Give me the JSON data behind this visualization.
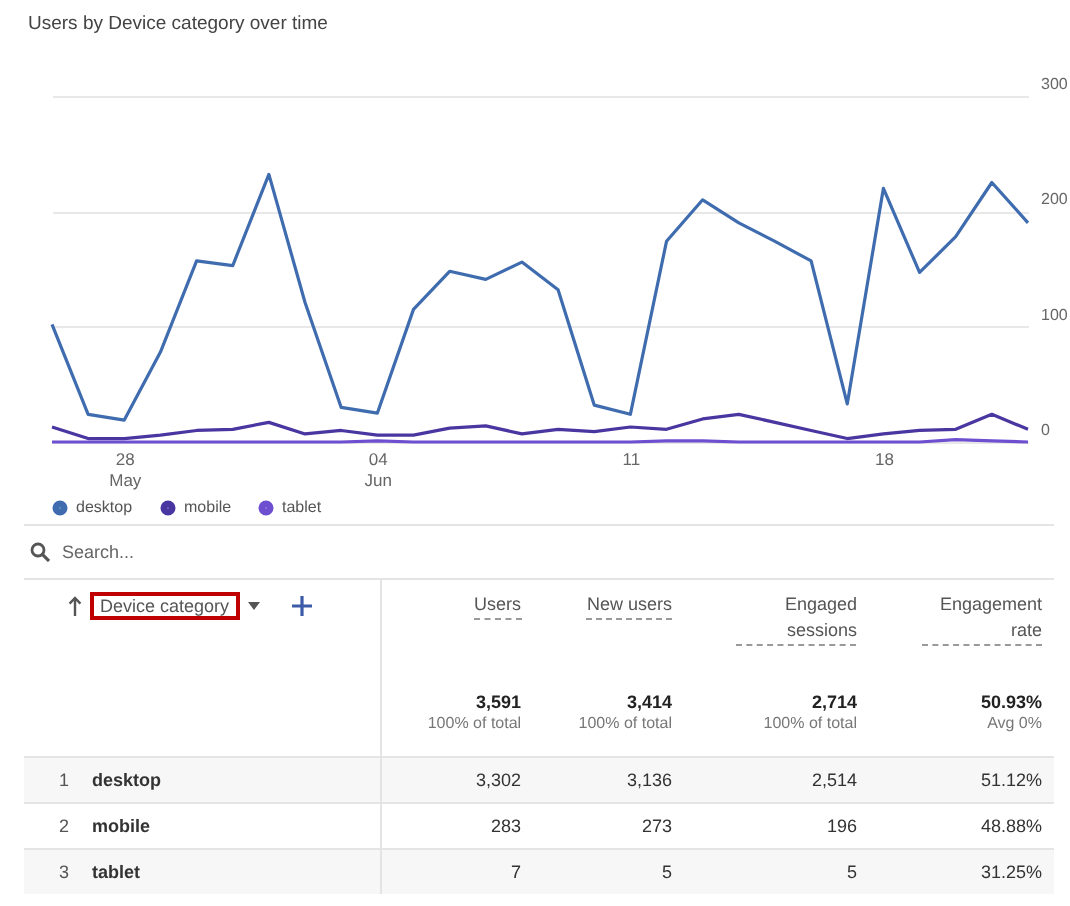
{
  "chart_data": [
    {
      "type": "line",
      "title": "Users by Device category over time",
      "x": [
        "--05-26",
        "--05-27",
        "--05-28",
        "--05-29",
        "--05-30",
        "--05-31",
        "--06-01",
        "--06-02",
        "--06-03",
        "--06-04",
        "--06-05",
        "--06-06",
        "--06-07",
        "--06-08",
        "--06-09",
        "--06-10",
        "--06-11",
        "--06-12",
        "--06-13",
        "--06-14",
        "--06-15",
        "--06-16",
        "--06-17",
        "--06-18",
        "--06-19",
        "--06-20",
        "--06-21",
        "--06-22"
      ],
      "series": [
        {
          "name": "desktop",
          "color": "#3f6cae",
          "values": [
            102,
            24,
            19,
            78,
            157,
            153,
            232,
            121,
            30,
            25,
            115,
            148,
            141,
            156,
            132,
            32,
            24,
            174,
            210,
            190,
            174,
            157,
            33,
            220,
            147,
            178,
            225,
            190
          ]
        },
        {
          "name": "mobile",
          "color": "#4a36a0",
          "values": [
            13,
            3,
            3,
            6,
            10,
            11,
            17,
            7,
            10,
            6,
            6,
            12,
            14,
            7,
            11,
            9,
            13,
            11,
            20,
            24,
            17,
            10,
            3,
            7,
            10,
            11,
            24,
            11
          ]
        },
        {
          "name": "tablet",
          "color": "#6d4fd0",
          "values": [
            0,
            0,
            0,
            0,
            0,
            0,
            0,
            0,
            0,
            1,
            0,
            0,
            0,
            0,
            0,
            0,
            0,
            1,
            1,
            0,
            0,
            0,
            0,
            0,
            0,
            2,
            1,
            0
          ]
        }
      ],
      "xlim": [
        "--05-26",
        "--06-22"
      ],
      "xticks": [
        {
          "value": "--05-28",
          "label": "28\nMay"
        },
        {
          "value": "--06-04",
          "label": "04\nJun"
        },
        {
          "value": "--06-11",
          "label": "11"
        },
        {
          "value": "--06-18",
          "label": "18"
        }
      ],
      "ylim": [
        0,
        300
      ],
      "yticks": [
        0,
        100,
        200,
        300
      ],
      "grid": "y",
      "legend": "bottom left",
      "marker": "none",
      "line_style": "solid"
    },
    {
      "type": "other",
      "xlabel": "Device category",
      "categories": [
        "desktop",
        "mobile",
        "tablet"
      ],
      "series": [
        {
          "values": [
            3302,
            283,
            7
          ],
          "value_labels": [
            "3,302",
            "283",
            "7"
          ]
        },
        {
          "values": [
            3136,
            273,
            5
          ],
          "value_labels": [
            "3,136",
            "273",
            "5"
          ]
        },
        {
          "values": [
            2514,
            196,
            5
          ],
          "value_labels": [
            "2,514",
            "196",
            "5"
          ]
        },
        {
          "values": [
            51.12,
            48.88,
            31.25
          ],
          "value_labels": [
            "51.12%",
            "48.88%",
            "31.25%"
          ]
        }
      ],
      "totals": [
        "3,591",
        "3,414",
        "2,714",
        "50.93%"
      ],
      "annotations": [
        "Search...",
        "Users",
        "New users",
        "Engaged sessions",
        "Engagement rate",
        "100% of total",
        "100% of total",
        "100% of total",
        "Avg 0%",
        "1",
        "2",
        "3"
      ]
    }
  ]
}
